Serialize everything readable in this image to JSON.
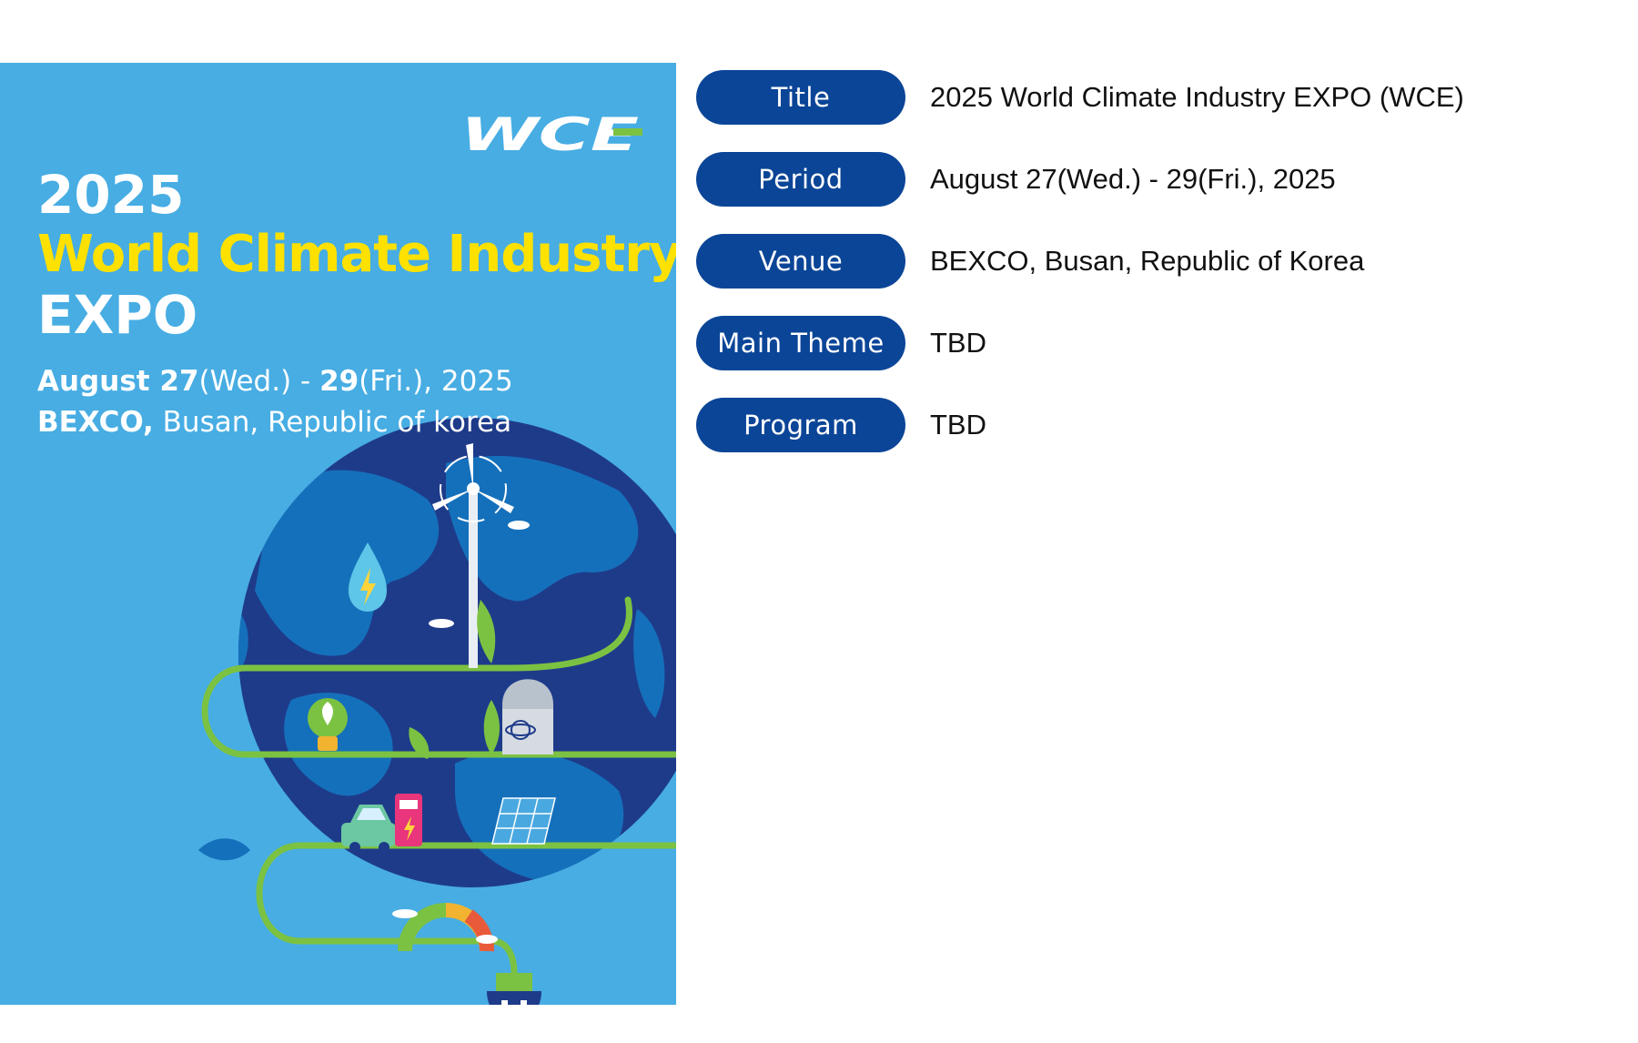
{
  "poster": {
    "logo_text": "WCE",
    "year": "2025",
    "name": "World Climate Industry",
    "expo": "EXPO",
    "dates": {
      "month_day": "August 27",
      "start_weekday": "(Wed.) - ",
      "end_day": "29",
      "end_rest": "(Fri.), 2025"
    },
    "venue": {
      "name": "BEXCO,",
      "rest": " Busan, Republic of korea"
    },
    "colors": {
      "background": "#47ade3",
      "highlight": "#ffe100",
      "globe": "#1e3b8a",
      "path": "#7cc242"
    }
  },
  "info": {
    "label_color": "#0b4597",
    "rows": [
      {
        "label": "Title",
        "value": "2025 World Climate Industry EXPO (WCE)"
      },
      {
        "label": "Period",
        "value": "August 27(Wed.) - 29(Fri.), 2025"
      },
      {
        "label": "Venue",
        "value": "BEXCO, Busan, Republic of Korea"
      },
      {
        "label": "Main Theme",
        "value": "TBD"
      },
      {
        "label": "Program",
        "value": "TBD"
      }
    ]
  }
}
